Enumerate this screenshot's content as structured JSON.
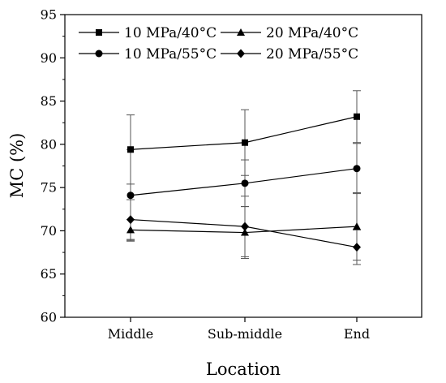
{
  "chart_data": {
    "type": "line",
    "xlabel": "Location",
    "ylabel": "MC (%)",
    "categories": [
      "Middle",
      "Sub-middle",
      "End"
    ],
    "ylim": [
      60,
      95
    ],
    "yticks": [
      60,
      65,
      70,
      75,
      80,
      85,
      90,
      95
    ],
    "legend_position": "top",
    "series": [
      {
        "name": "10 MPa/40°C",
        "marker": "square",
        "values": [
          79.4,
          80.2,
          83.2
        ],
        "error": [
          4.0,
          3.8,
          3.0
        ]
      },
      {
        "name": "20 MPa/40°C",
        "marker": "triangle",
        "values": [
          70.1,
          69.8,
          70.5
        ],
        "error": [
          1.2,
          3.0,
          3.9
        ]
      },
      {
        "name": "10 MPa/55°C",
        "marker": "circle",
        "values": [
          74.1,
          75.5,
          77.2
        ],
        "error": [
          5.3,
          2.7,
          2.9
        ]
      },
      {
        "name": "20 MPa/55°C",
        "marker": "diamond",
        "values": [
          71.3,
          70.5,
          68.1
        ],
        "error": [
          2.3,
          3.5,
          2.0
        ]
      }
    ]
  }
}
